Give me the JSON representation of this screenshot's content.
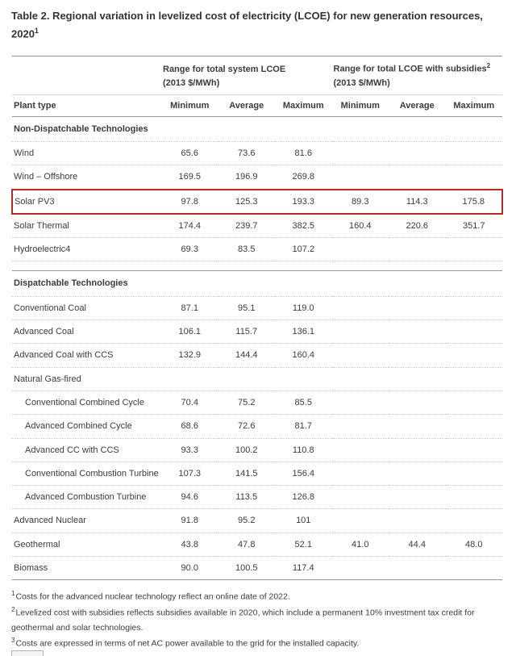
{
  "title": {
    "text": "Table 2. Regional variation in levelized cost of electricity (LCOE) for new generation resources, 2020",
    "sup": "1"
  },
  "columns": {
    "plant_type": "Plant type",
    "group1": {
      "label": "Range for total system LCOE",
      "unit": "(2013 $/MWh)"
    },
    "group2": {
      "label": "Range for total LCOE with subsidies",
      "sup": "2",
      "unit": "(2013 $/MWh)"
    },
    "sub_headers": [
      "Minimum",
      "Average",
      "Maximum",
      "Minimum",
      "Average",
      "Maximum"
    ]
  },
  "sections": [
    {
      "header": "Non-Dispatchable Technologies",
      "rows": [
        {
          "label": "Wind",
          "indent": false,
          "highlight": false,
          "values": [
            "65.6",
            "73.6",
            "81.6",
            "",
            "",
            ""
          ]
        },
        {
          "label": "Wind – Offshore",
          "indent": false,
          "highlight": false,
          "values": [
            "169.5",
            "196.9",
            "269.8",
            "",
            "",
            ""
          ]
        },
        {
          "label": "Solar PV3",
          "indent": false,
          "highlight": true,
          "values": [
            "97.8",
            "125.3",
            "193.3",
            "89.3",
            "114.3",
            "175.8"
          ]
        },
        {
          "label": "Solar Thermal",
          "indent": false,
          "highlight": false,
          "values": [
            "174.4",
            "239.7",
            "382.5",
            "160.4",
            "220.6",
            "351.7"
          ]
        },
        {
          "label": "Hydroelectric4",
          "indent": false,
          "highlight": false,
          "values": [
            "69.3",
            "83.5",
            "107.2",
            "",
            "",
            ""
          ]
        }
      ]
    },
    {
      "header": "Dispatchable Technologies",
      "rows": [
        {
          "label": "Conventional Coal",
          "indent": false,
          "highlight": false,
          "values": [
            "87.1",
            "95.1",
            "119.0",
            "",
            "",
            ""
          ]
        },
        {
          "label": "Advanced Coal",
          "indent": false,
          "highlight": false,
          "values": [
            "106.1",
            "115.7",
            "136.1",
            "",
            "",
            ""
          ]
        },
        {
          "label": "Advanced Coal with CCS",
          "indent": false,
          "highlight": false,
          "values": [
            "132.9",
            "144.4",
            "160.4",
            "",
            "",
            ""
          ]
        },
        {
          "label": "Natural Gas-fired",
          "indent": false,
          "highlight": false,
          "values": [
            "",
            "",
            "",
            "",
            "",
            ""
          ]
        },
        {
          "label": "Conventional Combined Cycle",
          "indent": true,
          "highlight": false,
          "values": [
            "70.4",
            "75.2",
            "85.5",
            "",
            "",
            ""
          ]
        },
        {
          "label": "Advanced Combined Cycle",
          "indent": true,
          "highlight": false,
          "values": [
            "68.6",
            "72.6",
            "81.7",
            "",
            "",
            ""
          ]
        },
        {
          "label": "Advanced CC with CCS",
          "indent": true,
          "highlight": false,
          "values": [
            "93.3",
            "100.2",
            "110.8",
            "",
            "",
            ""
          ]
        },
        {
          "label": "Conventional Combustion Turbine",
          "indent": true,
          "highlight": false,
          "values": [
            "107.3",
            "141.5",
            "156.4",
            "",
            "",
            ""
          ]
        },
        {
          "label": "Advanced Combustion Turbine",
          "indent": true,
          "highlight": false,
          "values": [
            "94.6",
            "113.5",
            "126.8",
            "",
            "",
            ""
          ]
        },
        {
          "label": "Advanced Nuclear",
          "indent": false,
          "highlight": false,
          "values": [
            "91.8",
            "95.2",
            "101",
            "",
            "",
            ""
          ]
        },
        {
          "label": "Geothermal",
          "indent": false,
          "highlight": false,
          "values": [
            "43.8",
            "47.8",
            "52.1",
            "41.0",
            "44.4",
            "48.0"
          ]
        },
        {
          "label": "Biomass",
          "indent": false,
          "highlight": false,
          "values": [
            "90.0",
            "100.5",
            "117.4",
            "",
            "",
            ""
          ]
        }
      ]
    }
  ],
  "footnotes": [
    {
      "sup": "1",
      "text": "Costs for the advanced nuclear technology reflect an online date of 2022."
    },
    {
      "sup": "2",
      "text": "Levelized cost with subsidies reflects subsidies available in 2020, which include a permanent 10% investment tax credit for geothermal and solar technologies."
    },
    {
      "sup": "3",
      "text": "Costs are expressed in terms of net AC power available to the grid for the installed capacity."
    }
  ],
  "colors": {
    "highlight_box": "#AE2E24",
    "rule": "#999999",
    "text": "#3b3b3b"
  }
}
